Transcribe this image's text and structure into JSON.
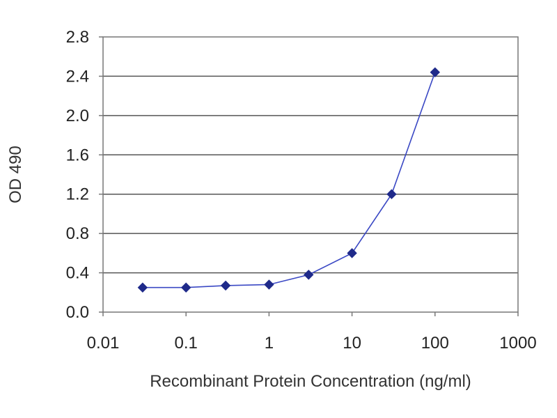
{
  "chart_data": {
    "type": "line",
    "title": "",
    "xlabel": "Recombinant Protein Concentration (ng/ml)",
    "ylabel": "OD 490",
    "xscale": "log",
    "xlim": [
      0.01,
      1000
    ],
    "ylim": [
      0,
      2.8
    ],
    "x_ticks": [
      0.01,
      0.1,
      1,
      10,
      100,
      1000
    ],
    "x_tick_labels": [
      "0.01",
      "0.1",
      "1",
      "10",
      "100",
      "1000"
    ],
    "y_ticks": [
      0,
      0.4,
      0.8,
      1.2,
      1.6,
      2.0,
      2.4,
      2.8
    ],
    "y_tick_labels": [
      "0.0",
      "0.4",
      "0.8",
      "1.2",
      "1.6",
      "2.0",
      "2.4",
      "2.8"
    ],
    "grid": "horizontal",
    "legend": "none",
    "series": [
      {
        "x": [
          0.03,
          0.1,
          0.3,
          1,
          3,
          10,
          30,
          100
        ],
        "y": [
          0.25,
          0.25,
          0.27,
          0.28,
          0.38,
          0.6,
          1.2,
          2.44
        ],
        "color": "#1f2a8a",
        "marker": "diamond"
      }
    ]
  }
}
